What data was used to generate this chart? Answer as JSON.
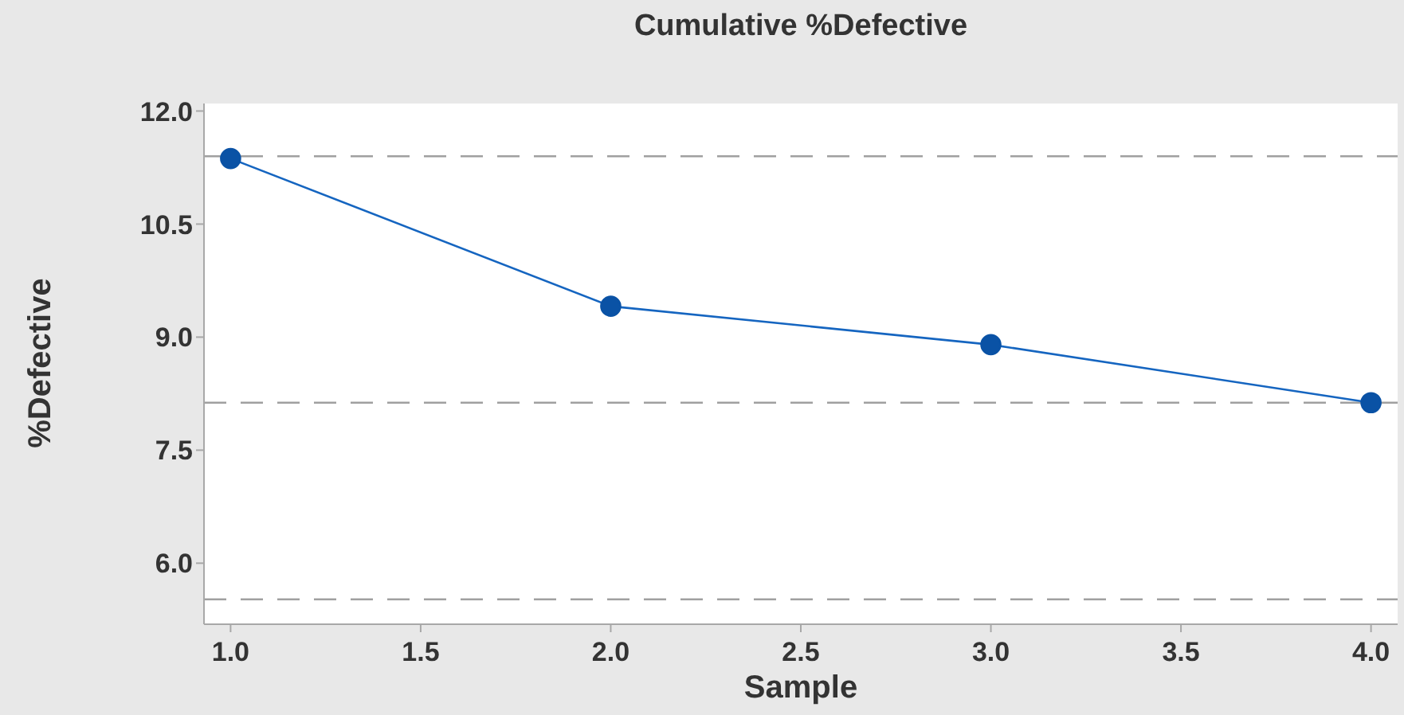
{
  "chart_data": {
    "type": "line",
    "title": "Cumulative %Defective",
    "xlabel": "Sample",
    "ylabel": "%Defective",
    "x": [
      1,
      2,
      3,
      4
    ],
    "series": [
      {
        "color": "#1565c0",
        "values": [
          11.37,
          9.41,
          8.9,
          8.13
        ]
      }
    ],
    "xlim": [
      0.93,
      4.07
    ],
    "xticks": [
      {
        "value": 1,
        "label": "1.0"
      },
      1.5,
      {
        "value": 2,
        "label": "2.0"
      },
      2.5,
      {
        "value": 3,
        "label": "3.0"
      },
      3.5,
      {
        "value": 4,
        "label": "4.0"
      }
    ],
    "ylim": [
      5.19,
      12.1
    ],
    "yticks": [
      {
        "value": 6,
        "label": "6.0"
      },
      7.5,
      {
        "value": 9,
        "label": "9.0"
      },
      10.5,
      {
        "value": 12,
        "label": "12.0"
      }
    ],
    "ref_lines": [
      {
        "axis": "y",
        "value": 11.4,
        "color": "#a0a0a0",
        "line_style": "dashed"
      },
      {
        "axis": "y",
        "value": 8.13,
        "color": "#a0a0a0",
        "line_style": "dashed"
      },
      {
        "axis": "y",
        "value": 5.52,
        "color": "#a0a0a0",
        "line_style": "dashed"
      }
    ],
    "grid": false,
    "legend": false,
    "marker": "circle",
    "line_style": "solid"
  }
}
